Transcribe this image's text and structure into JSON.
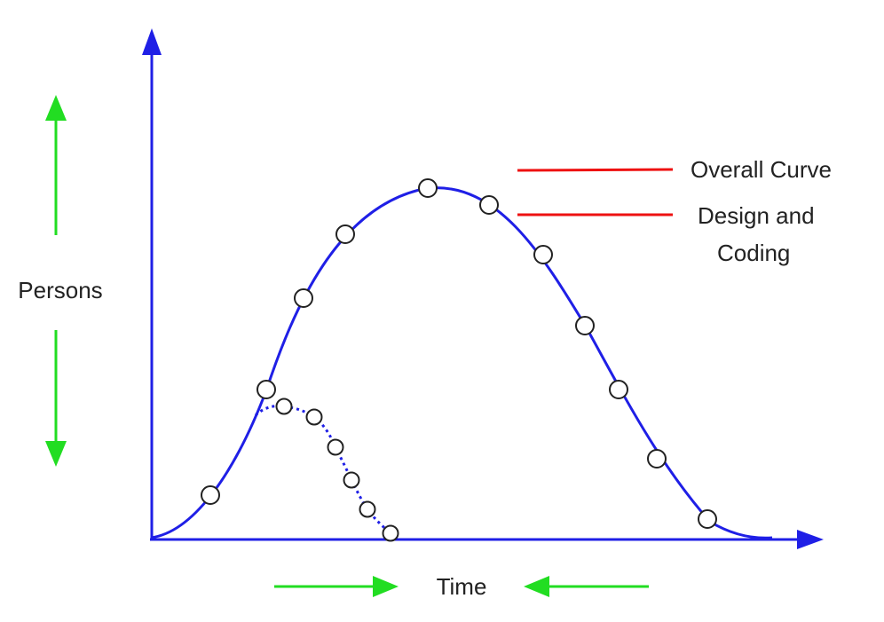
{
  "colors": {
    "axis": "#1f1fe6",
    "curve": "#1f1fe6",
    "indicator_arrows": "#22dd22",
    "legend_lines": "#ee1111",
    "marker_fill": "#ffffff",
    "marker_stroke": "#222222",
    "text": "#222222"
  },
  "labels": {
    "y_axis": "Persons",
    "x_axis": "Time",
    "overall_curve": "Overall Curve",
    "design_coding_line1": "Design and",
    "design_coding_line2": "Coding"
  },
  "icons": {
    "y_axis_head": "arrow-up-icon",
    "x_axis_head": "arrow-right-icon",
    "persons_up": "arrow-up-icon",
    "persons_down": "arrow-down-icon",
    "time_right": "arrow-right-icon",
    "time_left": "arrow-left-icon"
  }
}
